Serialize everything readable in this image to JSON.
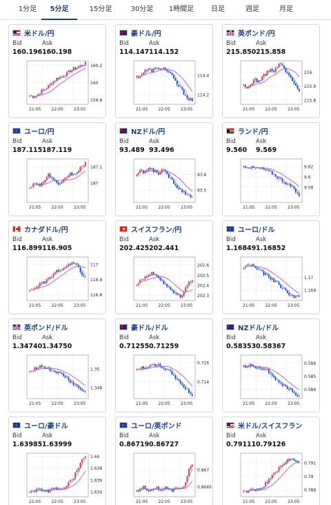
{
  "tabs": [
    {
      "label": "1分足",
      "active": false
    },
    {
      "label": "5分足",
      "active": true
    },
    {
      "label": "15分足",
      "active": false
    },
    {
      "label": "30分足",
      "active": false
    },
    {
      "label": "1時間足",
      "active": false
    },
    {
      "label": "日足",
      "active": false
    },
    {
      "label": "週足",
      "active": false
    },
    {
      "label": "月足",
      "active": false
    }
  ],
  "labels": {
    "bid": "Bid",
    "ask": "Ask"
  },
  "colors": {
    "up": "#e8203a",
    "down": "#1838c8",
    "ma_short": "#4aa3df",
    "ma_long": "#cc33cc",
    "title": "#1d3f86"
  },
  "cards": [
    {
      "title": "米ドル/円",
      "flag": "us-flag-icon",
      "bid": "160.196",
      "ask": "160.198",
      "chart_data": {
        "type": "candlestick",
        "x_ticks": [
          "21:05",
          "22:05",
          "23:05"
        ],
        "y_ticks": [
          "159.8",
          "160",
          "160.2"
        ],
        "ylim": [
          159.75,
          160.25
        ],
        "trend": [
          159.85,
          159.84,
          159.86,
          159.9,
          159.92,
          159.96,
          160.0,
          160.04,
          160.06,
          160.08,
          160.1,
          160.14,
          160.16,
          160.18,
          160.2,
          160.22
        ]
      }
    },
    {
      "title": "豪ドル/円",
      "flag": "au-flag-icon",
      "bid": "114.147",
      "ask": "114.152",
      "chart_data": {
        "type": "candlestick",
        "x_ticks": [
          "21:05",
          "22:05",
          "23:05"
        ],
        "y_ticks": [
          "114.2",
          "114.4"
        ],
        "ylim": [
          114.1,
          114.55
        ],
        "trend": [
          114.38,
          114.4,
          114.44,
          114.46,
          114.45,
          114.47,
          114.46,
          114.48,
          114.45,
          114.42,
          114.36,
          114.3,
          114.26,
          114.2,
          114.16,
          114.14
        ]
      }
    },
    {
      "title": "英ポンド/円",
      "flag": "gb-flag-icon",
      "bid": "215.850",
      "ask": "215.858",
      "chart_data": {
        "type": "candlestick",
        "x_ticks": [
          "21:05",
          "22:05",
          "23:05"
        ],
        "y_ticks": [
          "215.8",
          "215.9",
          "216"
        ],
        "ylim": [
          215.77,
          216.08
        ],
        "trend": [
          215.9,
          215.88,
          215.92,
          215.95,
          215.93,
          215.96,
          215.99,
          216.02,
          216.0,
          216.04,
          216.06,
          216.02,
          215.98,
          215.95,
          215.9,
          215.86
        ]
      }
    },
    {
      "title": "ユーロ/円",
      "flag": "eu-flag-icon",
      "bid": "187.115",
      "ask": "187.119",
      "chart_data": {
        "type": "candlestick",
        "x_ticks": [
          "21:05",
          "22:05",
          "23:05"
        ],
        "y_ticks": [
          "187",
          "187.1"
        ],
        "ylim": [
          186.88,
          187.15
        ],
        "trend": [
          186.98,
          186.99,
          187.0,
          186.99,
          187.02,
          187.05,
          187.03,
          187.0,
          186.98,
          187.01,
          187.04,
          187.06,
          187.05,
          187.08,
          187.1,
          187.12
        ]
      }
    },
    {
      "title": "NZドル/円",
      "flag": "nz-flag-icon",
      "bid": "93.489",
      "ask": "93.496",
      "chart_data": {
        "type": "candlestick",
        "x_ticks": [
          "21:05",
          "22:05",
          "23:05"
        ],
        "y_ticks": [
          "93.5",
          "93.6"
        ],
        "ylim": [
          93.42,
          93.7
        ],
        "trend": [
          93.6,
          93.62,
          93.61,
          93.64,
          93.63,
          93.62,
          93.61,
          93.63,
          93.6,
          93.58,
          93.55,
          93.52,
          93.5,
          93.48,
          93.47,
          93.46
        ]
      }
    },
    {
      "title": "ランド/円",
      "flag": "za-flag-icon",
      "bid": "9.560",
      "ask": "9.569",
      "chart_data": {
        "type": "candlestick",
        "x_ticks": [
          "21:05",
          "22:05",
          "23:05"
        ],
        "y_ticks": [
          "9.58",
          "9.6",
          "9.62"
        ],
        "ylim": [
          9.55,
          9.635
        ],
        "trend": [
          9.62,
          9.62,
          9.618,
          9.617,
          9.616,
          9.615,
          9.612,
          9.61,
          9.605,
          9.6,
          9.595,
          9.59,
          9.585,
          9.58,
          9.572,
          9.562
        ]
      }
    },
    {
      "title": "カナダドル/円",
      "flag": "ca-flag-icon",
      "bid": "116.899",
      "ask": "116.905",
      "chart_data": {
        "type": "candlestick",
        "x_ticks": [
          "21:05",
          "22:05",
          "23:05"
        ],
        "y_ticks": [
          "116.8",
          "116.9",
          "117"
        ],
        "ylim": [
          116.76,
          117.05
        ],
        "trend": [
          116.82,
          116.84,
          116.86,
          116.87,
          116.88,
          116.9,
          116.93,
          116.95,
          116.96,
          116.97,
          116.99,
          117.0,
          117.01,
          116.98,
          116.94,
          116.91
        ]
      }
    },
    {
      "title": "スイスフラン/円",
      "flag": "ch-flag-icon",
      "bid": "202.425",
      "ask": "202.441",
      "chart_data": {
        "type": "candlestick",
        "x_ticks": [
          "21:05",
          "22:05",
          "23:05"
        ],
        "y_ticks": [
          "202.3",
          "202.4",
          "202.5",
          "202.6"
        ],
        "ylim": [
          202.25,
          202.68
        ],
        "trend": [
          202.42,
          202.45,
          202.48,
          202.5,
          202.52,
          202.49,
          202.47,
          202.44,
          202.4,
          202.37,
          202.33,
          202.3,
          202.28,
          202.36,
          202.42,
          202.46
        ]
      }
    },
    {
      "title": "ユーロ/ドル",
      "flag": "eu-us-flag-icon",
      "bid": "1.16849",
      "ask": "1.16852",
      "chart_data": {
        "type": "candlestick",
        "x_ticks": [
          "21:05",
          "22:05",
          "23:05"
        ],
        "y_ticks": [
          "1.169",
          "1.17"
        ],
        "ylim": [
          1.1682,
          1.1716
        ],
        "trend": [
          1.1708,
          1.1709,
          1.171,
          1.1708,
          1.1706,
          1.1704,
          1.1702,
          1.17,
          1.1698,
          1.1696,
          1.1693,
          1.169,
          1.1688,
          1.1686,
          1.1685,
          1.1685
        ]
      }
    },
    {
      "title": "英ポンド/ドル",
      "flag": "gb-us-flag-icon",
      "bid": "1.34740",
      "ask": "1.34750",
      "chart_data": {
        "type": "candlestick",
        "x_ticks": [
          "21:05",
          "22:05",
          "23:05"
        ],
        "y_ticks": [
          "1.348",
          "1.35"
        ],
        "ylim": [
          1.3468,
          1.3515
        ],
        "trend": [
          1.3498,
          1.35,
          1.3502,
          1.3503,
          1.3502,
          1.35,
          1.3498,
          1.3497,
          1.3495,
          1.3493,
          1.349,
          1.3486,
          1.3483,
          1.348,
          1.3477,
          1.3474
        ]
      }
    },
    {
      "title": "豪ドル/ドル",
      "flag": "au-us-flag-icon",
      "bid": "0.71255",
      "ask": "0.71259",
      "chart_data": {
        "type": "candlestick",
        "x_ticks": [
          "21:05",
          "22:05",
          "23:05"
        ],
        "y_ticks": [
          "0.714",
          "0.716"
        ],
        "ylim": [
          0.7122,
          0.7168
        ],
        "trend": [
          0.7152,
          0.7154,
          0.7155,
          0.7156,
          0.7157,
          0.7158,
          0.7157,
          0.7155,
          0.7153,
          0.715,
          0.7146,
          0.7142,
          0.7138,
          0.7133,
          0.7129,
          0.7126
        ]
      }
    },
    {
      "title": "NZドル/ドル",
      "flag": "nz-us-flag-icon",
      "bid": "0.58353",
      "ask": "0.58367",
      "chart_data": {
        "type": "candlestick",
        "x_ticks": [
          "21:05",
          "22:05",
          "23:05"
        ],
        "y_ticks": [
          "0.584",
          "0.585",
          "0.586"
        ],
        "ylim": [
          0.5833,
          0.5866
        ],
        "trend": [
          0.5857,
          0.5858,
          0.5858,
          0.5857,
          0.5857,
          0.5856,
          0.5855,
          0.5853,
          0.585,
          0.5847,
          0.5845,
          0.5843,
          0.5841,
          0.5839,
          0.5837,
          0.5835
        ]
      }
    },
    {
      "title": "ユーロ/豪ドル",
      "flag": "eu-au-flag-icon",
      "bid": "1.63985",
      "ask": "1.63999",
      "chart_data": {
        "type": "candlestick",
        "x_ticks": [
          "21:05",
          "22:05",
          "23:05"
        ],
        "y_ticks": [
          "1.634",
          "1.636",
          "1.638",
          "1.64"
        ],
        "ylim": [
          1.6332,
          1.6405
        ],
        "trend": [
          1.6342,
          1.6341,
          1.6343,
          1.6344,
          1.6343,
          1.6342,
          1.6344,
          1.6345,
          1.6346,
          1.6348,
          1.6352,
          1.6358,
          1.6366,
          1.638,
          1.6392,
          1.6398
        ]
      }
    },
    {
      "title": "ユーロ/英ポンド",
      "flag": "eu-gb-flag-icon",
      "bid": "0.86719",
      "ask": "0.86727",
      "chart_data": {
        "type": "candlestick",
        "x_ticks": [
          "21:05",
          "22:05",
          "23:05"
        ],
        "y_ticks": [
          "0.8665",
          "0.867"
        ],
        "ylim": [
          0.8662,
          0.8675
        ],
        "trend": [
          0.8664,
          0.8664,
          0.8665,
          0.8664,
          0.8664,
          0.8665,
          0.8664,
          0.8664,
          0.8665,
          0.8664,
          0.8664,
          0.8665,
          0.8664,
          0.8666,
          0.867,
          0.8672
        ]
      }
    },
    {
      "title": "米ドル/スイスフラン",
      "flag": "us-ch-flag-icon",
      "bid": "0.79111",
      "ask": "0.79126",
      "chart_data": {
        "type": "candlestick",
        "x_ticks": [
          "21:05",
          "22:05",
          "23:05"
        ],
        "y_ticks": [
          "0.789",
          "0.79",
          "0.791"
        ],
        "ylim": [
          0.7885,
          0.7917
        ],
        "trend": [
          0.7889,
          0.7889,
          0.789,
          0.7891,
          0.789,
          0.7892,
          0.7895,
          0.7898,
          0.7901,
          0.7904,
          0.7907,
          0.791,
          0.7912,
          0.7912,
          0.7911,
          0.7911
        ]
      }
    }
  ]
}
